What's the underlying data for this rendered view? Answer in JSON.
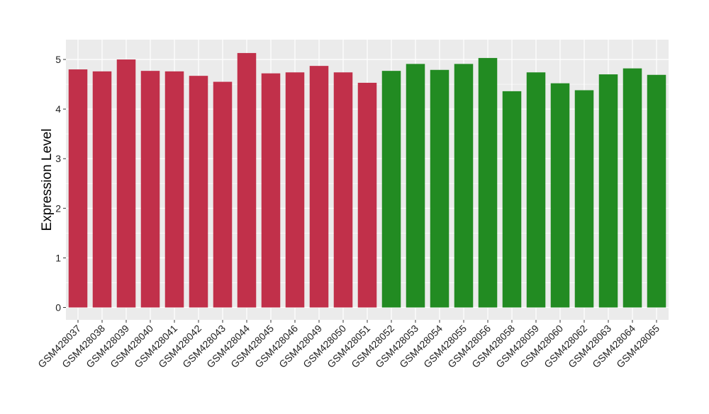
{
  "chart_data": {
    "type": "bar",
    "title": "",
    "xlabel": "",
    "ylabel": "Expression Level",
    "ylim": [
      -0.25,
      5.4
    ],
    "yticks": [
      0,
      1,
      2,
      3,
      4,
      5
    ],
    "grid": true,
    "categories": [
      "GSM428037",
      "GSM428038",
      "GSM428039",
      "GSM428040",
      "GSM428041",
      "GSM428042",
      "GSM428043",
      "GSM428044",
      "GSM428045",
      "GSM428046",
      "GSM428049",
      "GSM428050",
      "GSM428051",
      "GSM428052",
      "GSM428053",
      "GSM428054",
      "GSM428055",
      "GSM428056",
      "GSM428058",
      "GSM428059",
      "GSM428060",
      "GSM428062",
      "GSM428063",
      "GSM428064",
      "GSM428065"
    ],
    "values": [
      4.8,
      4.76,
      5.0,
      4.77,
      4.76,
      4.67,
      4.55,
      5.13,
      4.72,
      4.74,
      4.87,
      4.74,
      4.53,
      4.77,
      4.91,
      4.79,
      4.91,
      5.03,
      4.36,
      4.74,
      4.52,
      4.38,
      4.7,
      4.82,
      4.69
    ],
    "bar_colors": [
      "#C1304A",
      "#C1304A",
      "#C1304A",
      "#C1304A",
      "#C1304A",
      "#C1304A",
      "#C1304A",
      "#C1304A",
      "#C1304A",
      "#C1304A",
      "#C1304A",
      "#C1304A",
      "#C1304A",
      "#228B22",
      "#228B22",
      "#228B22",
      "#228B22",
      "#228B22",
      "#228B22",
      "#228B22",
      "#228B22",
      "#228B22",
      "#228B22",
      "#228B22",
      "#228B22"
    ],
    "panel_color": "#EBEBEB",
    "grid_color": "#FFFFFF"
  }
}
